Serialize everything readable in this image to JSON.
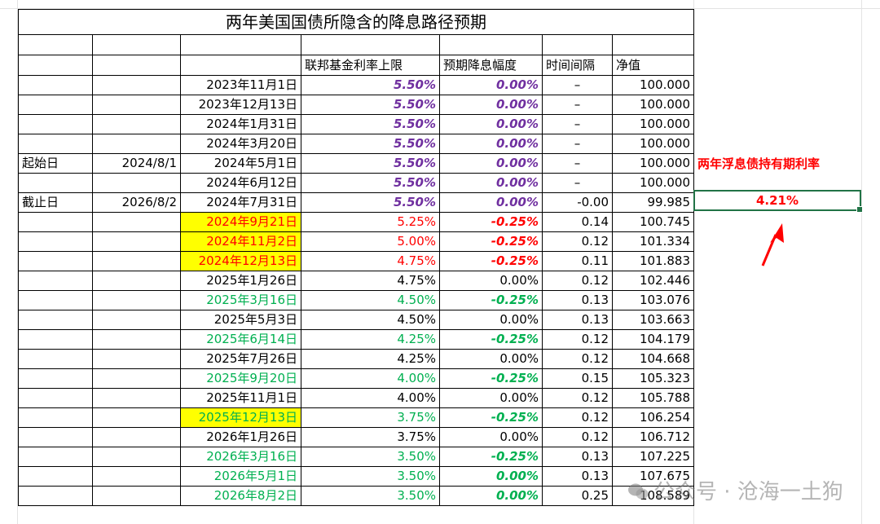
{
  "title": "两年美国国债所隐含的降息路径预期",
  "headers": {
    "fed_rate": "联邦基金利率上限",
    "expected_cut": "预期降息幅度",
    "interval": "时间间隔",
    "nav": "净值"
  },
  "rows": [
    {
      "label": "",
      "date0": "",
      "date": "2023年11月1日",
      "rate": "5.50%",
      "cut": "0.00%",
      "interval": "–",
      "nav": "100.000",
      "date_style": "black",
      "rate_style": "purple",
      "cut_style": "purple",
      "hl": false
    },
    {
      "label": "",
      "date0": "",
      "date": "2023年12月13日",
      "rate": "5.50%",
      "cut": "0.00%",
      "interval": "–",
      "nav": "100.000",
      "date_style": "black",
      "rate_style": "purple",
      "cut_style": "purple",
      "hl": false
    },
    {
      "label": "",
      "date0": "",
      "date": "2024年1月31日",
      "rate": "5.50%",
      "cut": "0.00%",
      "interval": "–",
      "nav": "100.000",
      "date_style": "black",
      "rate_style": "purple",
      "cut_style": "purple",
      "hl": false
    },
    {
      "label": "",
      "date0": "",
      "date": "2024年3月20日",
      "rate": "5.50%",
      "cut": "0.00%",
      "interval": "–",
      "nav": "100.000",
      "date_style": "black",
      "rate_style": "purple",
      "cut_style": "purple",
      "hl": false
    },
    {
      "label": "起始日",
      "date0": "2024/8/1",
      "date": "2024年5月1日",
      "rate": "5.50%",
      "cut": "0.00%",
      "interval": "–",
      "nav": "100.000",
      "date_style": "black",
      "rate_style": "purple",
      "cut_style": "purple",
      "hl": false
    },
    {
      "label": "",
      "date0": "",
      "date": "2024年6月12日",
      "rate": "5.50%",
      "cut": "0.00%",
      "interval": "–",
      "nav": "100.000",
      "date_style": "black",
      "rate_style": "purple",
      "cut_style": "purple",
      "hl": false
    },
    {
      "label": "截止日",
      "date0": "2026/8/2",
      "date": "2024年7月31日",
      "rate": "5.50%",
      "cut": "0.00%",
      "interval": "-0.00",
      "nav": "99.985",
      "date_style": "black",
      "rate_style": "purple",
      "cut_style": "purple",
      "hl": false
    },
    {
      "label": "",
      "date0": "",
      "date": "2024年9月21日",
      "rate": "5.25%",
      "cut": "-0.25%",
      "interval": "0.14",
      "nav": "100.745",
      "date_style": "red",
      "rate_style": "red",
      "cut_style": "red",
      "hl": true
    },
    {
      "label": "",
      "date0": "",
      "date": "2024年11月2日",
      "rate": "5.00%",
      "cut": "-0.25%",
      "interval": "0.12",
      "nav": "101.334",
      "date_style": "red",
      "rate_style": "red",
      "cut_style": "red",
      "hl": true
    },
    {
      "label": "",
      "date0": "",
      "date": "2024年12月13日",
      "rate": "4.75%",
      "cut": "-0.25%",
      "interval": "0.11",
      "nav": "101.883",
      "date_style": "red",
      "rate_style": "red",
      "cut_style": "red",
      "hl": true
    },
    {
      "label": "",
      "date0": "",
      "date": "2025年1月26日",
      "rate": "4.75%",
      "cut": "0.00%",
      "interval": "0.12",
      "nav": "102.446",
      "date_style": "black",
      "rate_style": "black",
      "cut_style": "black",
      "hl": false
    },
    {
      "label": "",
      "date0": "",
      "date": "2025年3月16日",
      "rate": "4.50%",
      "cut": "-0.25%",
      "interval": "0.13",
      "nav": "103.076",
      "date_style": "green",
      "rate_style": "green",
      "cut_style": "green",
      "hl": false
    },
    {
      "label": "",
      "date0": "",
      "date": "2025年5月3日",
      "rate": "4.50%",
      "cut": "0.00%",
      "interval": "0.13",
      "nav": "103.663",
      "date_style": "black",
      "rate_style": "black",
      "cut_style": "black",
      "hl": false
    },
    {
      "label": "",
      "date0": "",
      "date": "2025年6月14日",
      "rate": "4.25%",
      "cut": "-0.25%",
      "interval": "0.12",
      "nav": "104.179",
      "date_style": "green",
      "rate_style": "green",
      "cut_style": "green",
      "hl": false
    },
    {
      "label": "",
      "date0": "",
      "date": "2025年7月26日",
      "rate": "4.25%",
      "cut": "0.00%",
      "interval": "0.12",
      "nav": "104.668",
      "date_style": "black",
      "rate_style": "black",
      "cut_style": "black",
      "hl": false
    },
    {
      "label": "",
      "date0": "",
      "date": "2025年9月20日",
      "rate": "4.00%",
      "cut": "-0.25%",
      "interval": "0.15",
      "nav": "105.323",
      "date_style": "green",
      "rate_style": "green",
      "cut_style": "green",
      "hl": false
    },
    {
      "label": "",
      "date0": "",
      "date": "2025年11月1日",
      "rate": "4.00%",
      "cut": "0.00%",
      "interval": "0.12",
      "nav": "105.788",
      "date_style": "black",
      "rate_style": "black",
      "cut_style": "black",
      "hl": false
    },
    {
      "label": "",
      "date0": "",
      "date": "2025年12月13日",
      "rate": "3.75%",
      "cut": "-0.25%",
      "interval": "0.12",
      "nav": "106.254",
      "date_style": "green",
      "rate_style": "green",
      "cut_style": "green",
      "hl": true
    },
    {
      "label": "",
      "date0": "",
      "date": "2026年1月26日",
      "rate": "3.75%",
      "cut": "0.00%",
      "interval": "0.12",
      "nav": "106.712",
      "date_style": "black",
      "rate_style": "black",
      "cut_style": "black",
      "hl": false
    },
    {
      "label": "",
      "date0": "",
      "date": "2026年3月16日",
      "rate": "3.50%",
      "cut": "-0.25%",
      "interval": "0.13",
      "nav": "107.225",
      "date_style": "green",
      "rate_style": "green",
      "cut_style": "green",
      "hl": false
    },
    {
      "label": "",
      "date0": "",
      "date": "2026年5月1日",
      "rate": "3.50%",
      "cut": "0.00%",
      "interval": "0.13",
      "nav": "107.675",
      "date_style": "green",
      "rate_style": "green",
      "cut_style": "green",
      "hl": false
    },
    {
      "label": "",
      "date0": "",
      "date": "2026年8月2日",
      "rate": "3.50%",
      "cut": "0.00%",
      "interval": "0.25",
      "nav": "108.589",
      "date_style": "green",
      "rate_style": "green",
      "cut_style": "green",
      "hl": false
    }
  ],
  "side": {
    "label": "两年浮息债持有期利率",
    "value": "4.21%"
  },
  "watermark": "公众号 · 沧海一土狗",
  "colors": {
    "purple": "#7030a0",
    "red": "#ff0000",
    "green": "#00b050",
    "highlight": "#ffff00",
    "selection": "#217346"
  }
}
